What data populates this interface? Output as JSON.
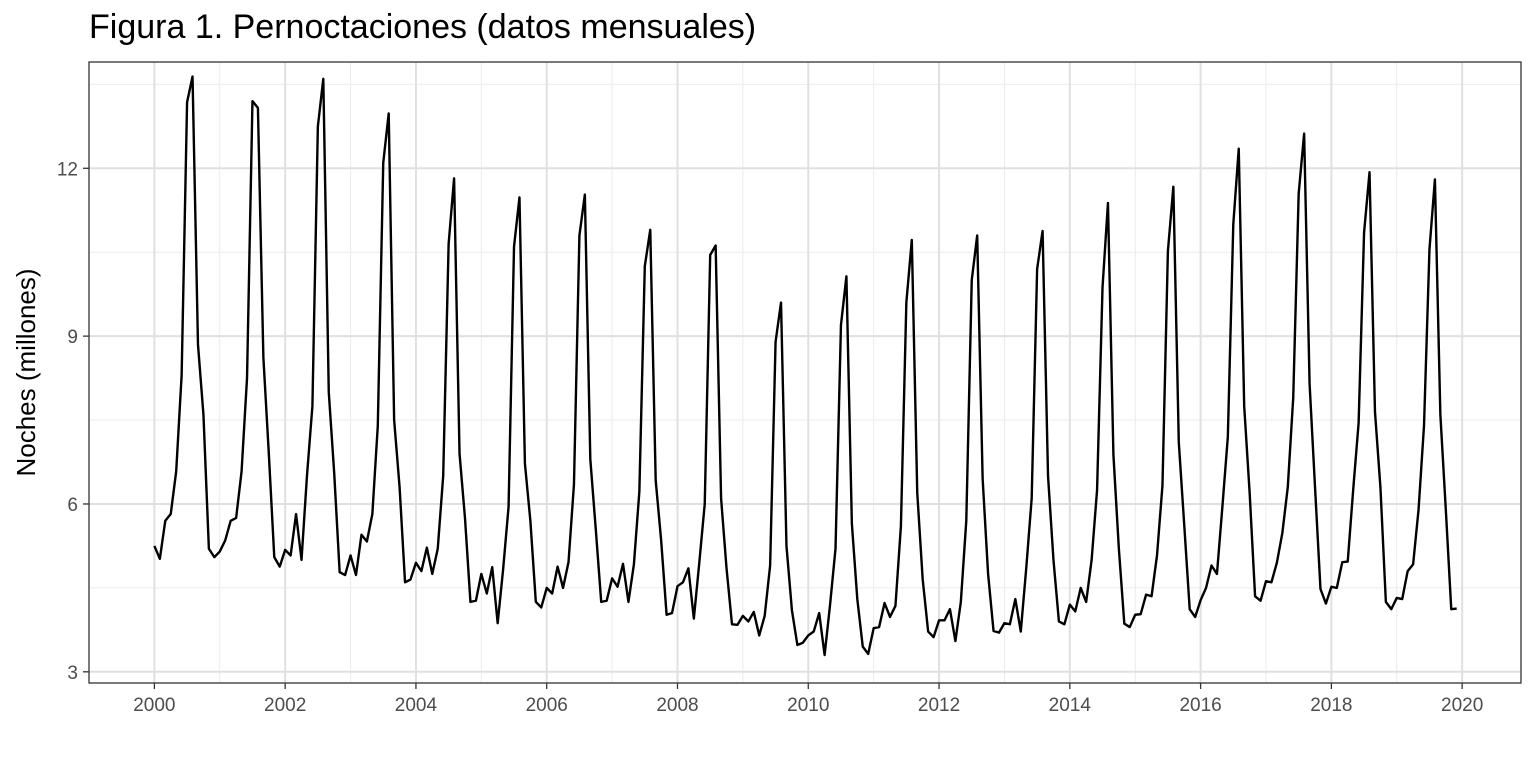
{
  "chart_data": {
    "type": "line",
    "title": "Figura 1. Pernoctaciones (datos mensuales)",
    "xlabel": "",
    "ylabel": "Noches (millones)",
    "xlim": [
      1999.0,
      2020.9
    ],
    "ylim": [
      2.8,
      13.9
    ],
    "x_ticks": [
      2000,
      2002,
      2004,
      2006,
      2008,
      2010,
      2012,
      2014,
      2016,
      2018,
      2020
    ],
    "y_ticks": [
      3,
      6,
      9,
      12
    ],
    "grid": true,
    "line_color": "#000000",
    "start_year": 2000,
    "start_month": 1,
    "values": [
      5.25,
      5.02,
      5.7,
      5.82,
      6.58,
      8.3,
      13.18,
      13.64,
      8.85,
      7.6,
      5.2,
      5.05,
      5.15,
      5.35,
      5.7,
      5.75,
      6.58,
      8.25,
      13.2,
      13.08,
      8.62,
      6.9,
      5.05,
      4.88,
      5.18,
      5.08,
      5.82,
      5.0,
      6.5,
      7.75,
      12.75,
      13.6,
      8.0,
      6.55,
      4.78,
      4.73,
      5.08,
      4.73,
      5.45,
      5.33,
      5.82,
      7.4,
      12.1,
      12.98,
      7.5,
      6.3,
      4.6,
      4.65,
      4.95,
      4.8,
      5.22,
      4.75,
      5.2,
      6.5,
      10.65,
      11.82,
      6.9,
      5.75,
      4.25,
      4.27,
      4.75,
      4.4,
      4.87,
      3.87,
      4.83,
      5.95,
      10.6,
      11.48,
      6.72,
      5.7,
      4.25,
      4.15,
      4.5,
      4.4,
      4.88,
      4.5,
      4.96,
      6.35,
      10.8,
      11.53,
      6.8,
      5.55,
      4.25,
      4.27,
      4.67,
      4.52,
      4.93,
      4.25,
      4.92,
      6.22,
      10.25,
      10.9,
      6.42,
      5.35,
      4.02,
      4.05,
      4.53,
      4.6,
      4.85,
      3.95,
      4.95,
      6.0,
      10.45,
      10.62,
      6.1,
      4.85,
      3.85,
      3.84,
      4.0,
      3.9,
      4.07,
      3.65,
      4.0,
      4.9,
      8.9,
      9.6,
      5.25,
      4.1,
      3.48,
      3.52,
      3.65,
      3.72,
      4.05,
      3.3,
      4.2,
      5.2,
      9.2,
      10.07,
      5.65,
      4.3,
      3.45,
      3.32,
      3.78,
      3.8,
      4.23,
      3.98,
      4.18,
      5.6,
      9.6,
      10.72,
      6.2,
      4.65,
      3.72,
      3.62,
      3.92,
      3.92,
      4.12,
      3.55,
      4.25,
      5.7,
      10.0,
      10.8,
      6.45,
      4.75,
      3.73,
      3.7,
      3.87,
      3.85,
      4.3,
      3.72,
      4.85,
      6.1,
      10.2,
      10.88,
      6.5,
      5.0,
      3.9,
      3.85,
      4.2,
      4.08,
      4.5,
      4.25,
      5.0,
      6.25,
      9.87,
      11.38,
      6.88,
      5.2,
      3.86,
      3.8,
      4.02,
      4.03,
      4.38,
      4.35,
      5.08,
      6.33,
      10.52,
      11.67,
      7.1,
      5.62,
      4.12,
      3.98,
      4.28,
      4.5,
      4.9,
      4.75,
      5.95,
      7.2,
      11.0,
      12.35,
      7.75,
      6.2,
      4.35,
      4.27,
      4.62,
      4.6,
      4.95,
      5.48,
      6.3,
      7.9,
      11.55,
      12.62,
      8.15,
      6.3,
      4.48,
      4.22,
      4.52,
      4.5,
      4.96,
      4.97,
      6.25,
      7.45,
      10.85,
      11.93,
      7.65,
      6.3,
      4.25,
      4.12,
      4.32,
      4.3,
      4.8,
      4.92,
      5.9,
      7.4,
      10.55,
      11.8,
      7.6,
      5.9,
      4.12,
      4.13
    ]
  }
}
